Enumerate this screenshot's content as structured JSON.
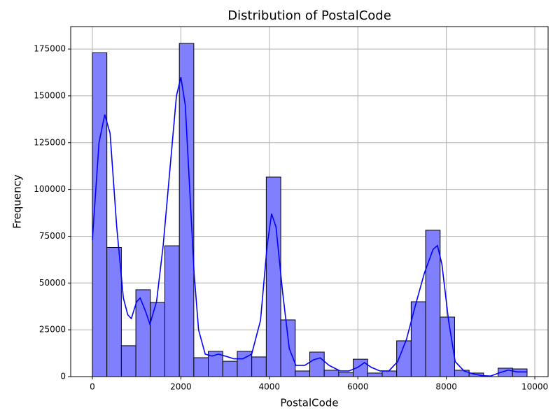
{
  "chart_data": {
    "type": "histogram",
    "title": "Distribution of PostalCode",
    "x_label": "PostalCode",
    "y_label": "Frequency",
    "bins": [
      0,
      327.5,
      655,
      982.5,
      1310,
      1637.5,
      1965,
      2292.5,
      2620,
      2947.5,
      3275,
      3602.5,
      3930,
      4257.5,
      4585,
      4912.5,
      5240,
      5567.5,
      5895,
      6222.5,
      6550,
      6877.5,
      7205,
      7532.5,
      7860,
      8187.5,
      8515,
      8842.5,
      9170,
      9497.5,
      9825
    ],
    "values": [
      173000,
      69000,
      16500,
      46400,
      39600,
      69900,
      178000,
      10100,
      13500,
      8200,
      13500,
      10500,
      106600,
      30300,
      3000,
      13100,
      3400,
      2200,
      9300,
      1900,
      3000,
      19100,
      40000,
      78200,
      31800,
      3400,
      1900,
      0,
      4500,
      4100
    ],
    "color": "#8080ff",
    "kde": {
      "color": "#0000ff",
      "x": [
        0,
        150,
        280,
        400,
        550,
        700,
        800,
        880,
        1000,
        1080,
        1200,
        1300,
        1450,
        1600,
        1750,
        1900,
        2000,
        2100,
        2200,
        2300,
        2400,
        2550,
        2700,
        2850,
        3000,
        3200,
        3400,
        3600,
        3800,
        3950,
        4050,
        4150,
        4300,
        4450,
        4600,
        4800,
        5000,
        5150,
        5350,
        5600,
        5800,
        6000,
        6150,
        6300,
        6500,
        6700,
        6900,
        7100,
        7300,
        7500,
        7700,
        7800,
        7900,
        8050,
        8200,
        8400,
        8600,
        8800,
        9000,
        9200,
        9400,
        9600,
        9825
      ],
      "values": [
        73000,
        125000,
        140000,
        130000,
        80000,
        42000,
        33000,
        31000,
        40000,
        42000,
        35000,
        28000,
        40000,
        70000,
        110000,
        150000,
        160000,
        145000,
        100000,
        55000,
        25000,
        12000,
        11000,
        12000,
        11000,
        9500,
        9500,
        12000,
        30000,
        70000,
        87000,
        80000,
        45000,
        15000,
        6000,
        6000,
        9000,
        10000,
        6000,
        3000,
        3000,
        5000,
        7500,
        5000,
        3000,
        3000,
        8000,
        20000,
        38000,
        55000,
        68000,
        70000,
        60000,
        30000,
        8000,
        3000,
        1500,
        500,
        300,
        2000,
        3500,
        2500,
        2500
      ]
    },
    "xlim": [
      -490,
      10300
    ],
    "ylim": [
      0,
      187000
    ],
    "xticks": [
      0,
      2000,
      4000,
      6000,
      8000,
      10000
    ],
    "yticks": [
      0,
      25000,
      50000,
      75000,
      100000,
      125000,
      150000,
      175000
    ],
    "grid": true
  }
}
